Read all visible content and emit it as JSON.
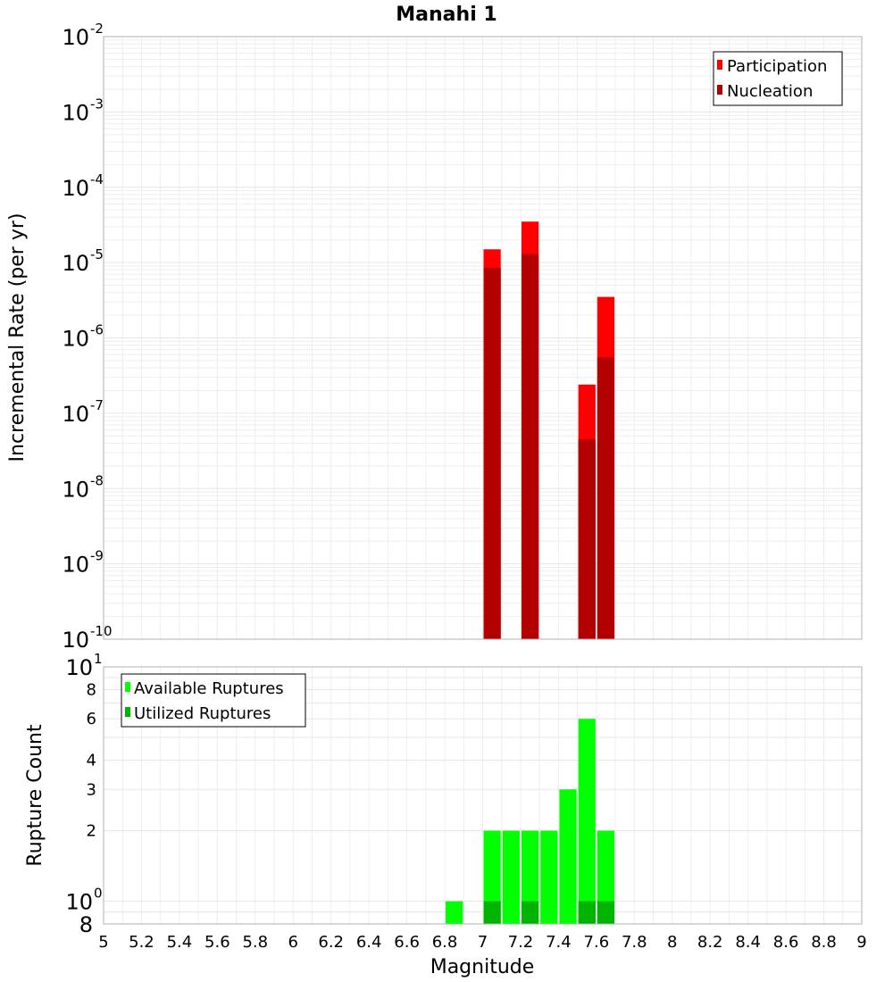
{
  "chart_data": [
    {
      "type": "bar",
      "title": "Manahi 1",
      "xlabel": "",
      "ylabel": "Incremental Rate (per yr)",
      "yscale": "log",
      "ylim": [
        1e-10,
        0.01
      ],
      "xlim": [
        5,
        9
      ],
      "bar_width": 0.1,
      "grid": true,
      "legend_position": "top-right",
      "y_ticks": [
        {
          "base": "10",
          "exp": "-2",
          "value": 0.01
        },
        {
          "base": "10",
          "exp": "-3",
          "value": 0.001
        },
        {
          "base": "10",
          "exp": "-4",
          "value": 0.0001
        },
        {
          "base": "10",
          "exp": "-5",
          "value": 1e-05
        },
        {
          "base": "10",
          "exp": "-6",
          "value": 1e-06
        },
        {
          "base": "10",
          "exp": "-7",
          "value": 1e-07
        },
        {
          "base": "10",
          "exp": "-8",
          "value": 1e-08
        },
        {
          "base": "10",
          "exp": "-9",
          "value": 1e-09
        },
        {
          "base": "10",
          "exp": "-10",
          "value": 1e-10
        }
      ],
      "series": [
        {
          "name": "Participation",
          "color": "#ff0000",
          "x": [
            7.05,
            7.25,
            7.55,
            7.65
          ],
          "values": [
            1.5e-05,
            3.5e-05,
            2.4e-07,
            3.5e-06
          ]
        },
        {
          "name": "Nucleation",
          "color": "#b30000",
          "x": [
            7.05,
            7.25,
            7.55,
            7.65
          ],
          "values": [
            8.5e-06,
            1.3e-05,
            4.5e-08,
            5.5e-07
          ]
        }
      ]
    },
    {
      "type": "bar",
      "title": "",
      "xlabel": "Magnitude",
      "ylabel": "Rupture Count",
      "yscale": "log",
      "ylim": [
        0.8,
        10
      ],
      "xlim": [
        5,
        9
      ],
      "bar_width": 0.1,
      "grid": true,
      "legend_position": "top-left",
      "x_ticks": [
        "5",
        "5.2",
        "5.4",
        "5.6",
        "5.8",
        "6",
        "6.2",
        "6.4",
        "6.6",
        "6.8",
        "7",
        "7.2",
        "7.4",
        "7.6",
        "7.8",
        "8",
        "8.2",
        "8.4",
        "8.6",
        "8.8",
        "9"
      ],
      "y_ticks_small": [
        {
          "label": "8",
          "value": 8
        },
        {
          "label": "6",
          "value": 6
        },
        {
          "label": "4",
          "value": 4
        },
        {
          "label": "3",
          "value": 3
        },
        {
          "label": "2",
          "value": 2
        }
      ],
      "y_ticks_big": [
        {
          "base": "10",
          "exp": "1",
          "value": 10
        },
        {
          "base": "10",
          "exp": "0",
          "value": 1
        },
        {
          "base": "8",
          "exp": "",
          "value": 0.8
        }
      ],
      "series": [
        {
          "name": "Available Ruptures",
          "color": "#00ff00",
          "x": [
            6.85,
            7.05,
            7.15,
            7.25,
            7.35,
            7.45,
            7.55,
            7.65
          ],
          "values": [
            1,
            2,
            2,
            2,
            2,
            3,
            6,
            2
          ]
        },
        {
          "name": "Utilized Ruptures",
          "color": "#00b300",
          "x": [
            7.05,
            7.25,
            7.55,
            7.65
          ],
          "values": [
            1,
            1,
            1,
            1
          ]
        }
      ]
    }
  ]
}
